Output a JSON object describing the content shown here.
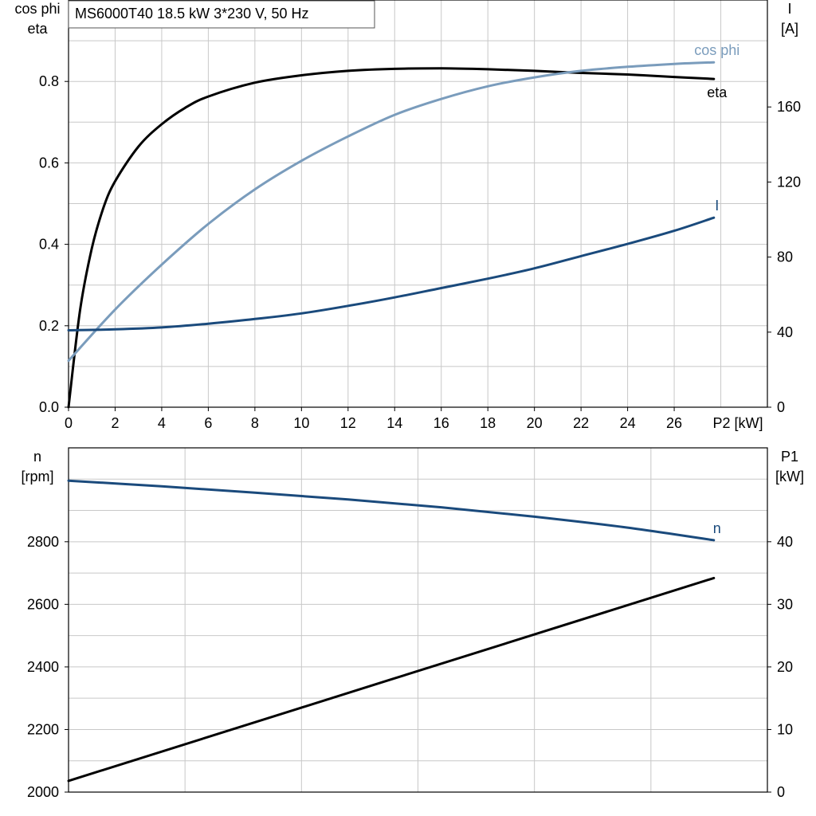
{
  "title": "MS6000T40   18.5 kW   3*230 V, 50 Hz",
  "chart_data": [
    {
      "type": "line",
      "title": "MS6000T40   18.5 kW   3*230 V, 50 Hz",
      "xlabel": "P2 [kW]",
      "x_ticks": [
        "0",
        "2",
        "4",
        "6",
        "8",
        "10",
        "12",
        "14",
        "16",
        "18",
        "20",
        "22",
        "24",
        "26"
      ],
      "xlim": [
        0,
        30
      ],
      "left_axis": {
        "label_line1": "cos phi",
        "label_line2": "eta",
        "ylim": [
          0,
          1.0
        ],
        "ticks": [
          "0.0",
          "0.2",
          "0.4",
          "0.6",
          "0.8"
        ]
      },
      "right_axis": {
        "label_line1": "I",
        "label_line2": "[A]",
        "ylim": [
          0,
          217
        ],
        "ticks": [
          "0",
          "40",
          "80",
          "120",
          "160"
        ]
      },
      "grid": true,
      "series": [
        {
          "name": "eta",
          "axis": "left",
          "color": "#000000",
          "x": [
            0,
            0.5,
            1,
            1.5,
            2,
            3,
            4,
            5,
            6,
            8,
            10,
            12,
            14,
            16,
            18,
            20,
            22,
            24,
            26,
            27.7
          ],
          "y": [
            0.0,
            0.24,
            0.39,
            0.49,
            0.555,
            0.64,
            0.695,
            0.735,
            0.763,
            0.797,
            0.815,
            0.826,
            0.831,
            0.832,
            0.83,
            0.826,
            0.821,
            0.817,
            0.811,
            0.806
          ]
        },
        {
          "name": "cos phi",
          "axis": "left",
          "color": "#7a9cbc",
          "x": [
            0,
            2,
            4,
            6,
            8,
            10,
            12,
            14,
            16,
            18,
            20,
            22,
            24,
            26,
            27.7
          ],
          "y": [
            0.114,
            0.24,
            0.35,
            0.45,
            0.535,
            0.605,
            0.665,
            0.718,
            0.757,
            0.788,
            0.81,
            0.826,
            0.836,
            0.843,
            0.847
          ]
        },
        {
          "name": "I",
          "axis": "right",
          "color": "#1a4a7c",
          "x": [
            0,
            2,
            4,
            6,
            8,
            10,
            12,
            14,
            16,
            18,
            20,
            22,
            24,
            26,
            27.7
          ],
          "y": [
            41,
            41.5,
            42.5,
            44.5,
            47,
            50,
            54,
            58.5,
            63.5,
            68.5,
            74,
            80.5,
            87,
            94,
            101
          ]
        }
      ]
    },
    {
      "type": "line",
      "xlim": [
        0,
        30
      ],
      "x_gridlines": [
        5,
        10,
        15,
        20,
        25
      ],
      "left_axis": {
        "label_line1": "n",
        "label_line2": "[rpm]",
        "ylim": [
          2000,
          3100
        ],
        "ticks": [
          "2000",
          "2200",
          "2400",
          "2600",
          "2800"
        ]
      },
      "right_axis": {
        "label_line1": "P1",
        "label_line2": "[kW]",
        "ylim": [
          0,
          55
        ],
        "ticks": [
          "0",
          "10",
          "20",
          "30",
          "40"
        ]
      },
      "grid": true,
      "series": [
        {
          "name": "n",
          "axis": "left",
          "color": "#1a4a7c",
          "x": [
            0,
            4,
            8,
            12,
            16,
            20,
            24,
            27.7
          ],
          "y": [
            2995,
            2977,
            2957,
            2935,
            2910,
            2880,
            2845,
            2805
          ]
        },
        {
          "name": "",
          "axis": "right",
          "color": "#000000",
          "x": [
            0,
            27.7
          ],
          "y": [
            1.8,
            34.2
          ]
        }
      ]
    }
  ]
}
